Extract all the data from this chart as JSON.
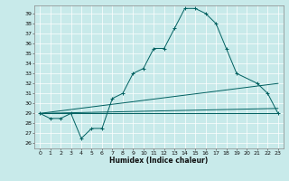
{
  "xlabel": "Humidex (Indice chaleur)",
  "background_color": "#c8eaea",
  "line_color": "#006060",
  "xlim": [
    -0.5,
    23.5
  ],
  "ylim": [
    25.5,
    39.8
  ],
  "xticks": [
    0,
    1,
    2,
    3,
    4,
    5,
    6,
    7,
    8,
    9,
    10,
    11,
    12,
    13,
    14,
    15,
    16,
    17,
    18,
    19,
    20,
    21,
    22,
    23
  ],
  "yticks": [
    26,
    27,
    28,
    29,
    30,
    31,
    32,
    33,
    34,
    35,
    36,
    37,
    38,
    39
  ],
  "line1_x": [
    0,
    1,
    2,
    3,
    4,
    5,
    6,
    7,
    8,
    9,
    10,
    11,
    12,
    13,
    14,
    15,
    16,
    17,
    18,
    19,
    21,
    22,
    23
  ],
  "line1_y": [
    29.0,
    28.5,
    28.5,
    29.0,
    26.5,
    27.5,
    27.5,
    30.5,
    31.0,
    33.0,
    33.5,
    35.5,
    35.5,
    37.5,
    39.5,
    39.5,
    39.0,
    38.0,
    35.5,
    33.0,
    32.0,
    31.0,
    29.0
  ],
  "line2_x": [
    0,
    23
  ],
  "line2_y": [
    29.0,
    29.0
  ],
  "line3_x": [
    0,
    23
  ],
  "line3_y": [
    29.0,
    29.5
  ],
  "line4_x": [
    0,
    23
  ],
  "line4_y": [
    29.0,
    32.0
  ]
}
